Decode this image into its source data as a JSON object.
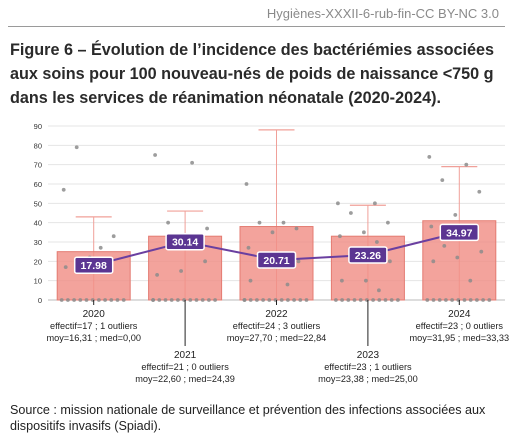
{
  "header": {
    "running_head": "Hygiènes-XXXII-6-rub-fin-CC BY-NC 3.0"
  },
  "figure": {
    "title": "Figure 6 – Évolution de l’incidence des bactériémies associées aux soins pour 100 nouveau-nés de poids de naissance <750 g dans les services de réanimation néonatale (2020-2024).",
    "source": "Source : mission nationale de surveillance et prévention des infections associées aux dispositifs invasifs (Spiadi)."
  },
  "colors": {
    "bar": "#f08f86",
    "bar_edge": "#e47b72",
    "line": "#6a3fa0",
    "label_bg": "#5b3592",
    "whisker": "#f0a099",
    "point": "#8c8c8c",
    "grid": "#e4e4e4"
  },
  "chart_data": {
    "type": "bar",
    "title": "",
    "xlabel": "",
    "ylabel": "",
    "ylim": [
      0,
      90
    ],
    "yticks": [
      0,
      10,
      20,
      30,
      40,
      50,
      60,
      70,
      80,
      90
    ],
    "grid": true,
    "categories": [
      "2020",
      "2021",
      "2022",
      "2023",
      "2024"
    ],
    "series": [
      {
        "type": "bar",
        "values": [
          25,
          33,
          38,
          33,
          41
        ]
      },
      {
        "type": "line",
        "values": [
          17.98,
          30.14,
          20.71,
          23.26,
          34.97
        ],
        "labels": [
          "17.98",
          "30.14",
          "20.71",
          "23.26",
          "34.97"
        ]
      }
    ],
    "whiskers": [
      {
        "low": 0,
        "high": 43
      },
      {
        "low": 0,
        "high": 46
      },
      {
        "low": 0,
        "high": 88
      },
      {
        "low": 0,
        "high": 49
      },
      {
        "low": 0,
        "high": 69
      }
    ],
    "points": [
      [
        57,
        27,
        79,
        33,
        22,
        17,
        0,
        0,
        0,
        0,
        0,
        0,
        0,
        0,
        0,
        0,
        0
      ],
      [
        75,
        71,
        40,
        20,
        15,
        13,
        27,
        33,
        37,
        0,
        0,
        0,
        0,
        0,
        0,
        0,
        0,
        0,
        0,
        0,
        0
      ],
      [
        60,
        40,
        40,
        37,
        35,
        27,
        23,
        17,
        20,
        17,
        10,
        8,
        0,
        0,
        0,
        0,
        0,
        0,
        0,
        0,
        0,
        0,
        0,
        0
      ],
      [
        50,
        50,
        45,
        40,
        35,
        33,
        30,
        25,
        20,
        10,
        10,
        5,
        0,
        0,
        0,
        0,
        0,
        0,
        0,
        0,
        0,
        0,
        0
      ],
      [
        74,
        70,
        62,
        56,
        44,
        38,
        33,
        28,
        25,
        22,
        20,
        10,
        0,
        0,
        0,
        0,
        0,
        0,
        0,
        0,
        0,
        0,
        0
      ]
    ],
    "annotations": [
      {
        "year": "2020",
        "line1": "effectif=17 ; 1 outliers",
        "line2": "moy=16,31 ; med=0,00",
        "row": "upper"
      },
      {
        "year": "2021",
        "line1": "effectif=21 ; 0 outliers",
        "line2": "moy=22,60 ; med=24,39",
        "row": "lower"
      },
      {
        "year": "2022",
        "line1": "effectif=24 ; 3 outliers",
        "line2": "moy=27,70 ; med=22,84",
        "row": "upper"
      },
      {
        "year": "2023",
        "line1": "effectif=23 ; 1 outliers",
        "line2": "moy=23,38 ; med=25,00",
        "row": "lower"
      },
      {
        "year": "2024",
        "line1": "effectif=23 ; 0 outliers",
        "line2": "moy=31,95 ; med=33,33",
        "row": "upper"
      }
    ]
  }
}
